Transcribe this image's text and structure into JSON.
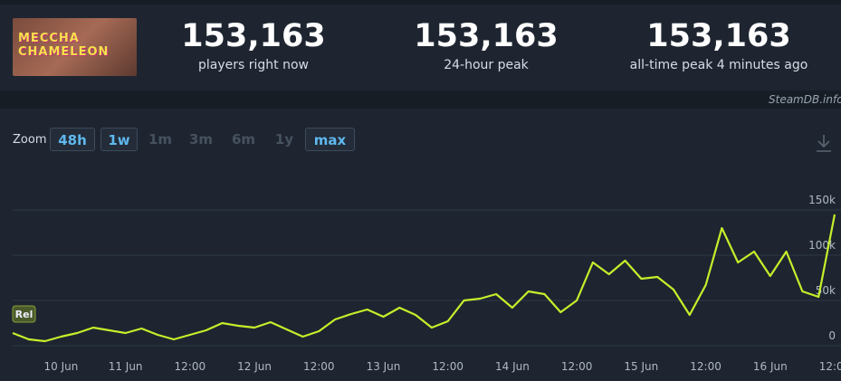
{
  "header": {
    "logo_text": "MECCHA CHAMELEON",
    "stats": [
      {
        "value": "153,163",
        "label": "players right now"
      },
      {
        "value": "153,163",
        "label": "24-hour peak"
      },
      {
        "value": "153,163",
        "label": "all-time peak 4 minutes ago"
      }
    ],
    "watermark": "SteamDB.info"
  },
  "zoom": {
    "label": "Zoom",
    "buttons": [
      "48h",
      "1w",
      "1m",
      "3m",
      "6m",
      "1y",
      "max"
    ]
  },
  "chart_data": {
    "type": "line",
    "annotation": "Rel",
    "categories": [
      null,
      null,
      null,
      "10 Jun",
      null,
      null,
      null,
      "11 Jun",
      null,
      null,
      null,
      "12:00",
      null,
      null,
      null,
      "12 Jun",
      null,
      null,
      null,
      "12:00",
      null,
      null,
      null,
      "13 Jun",
      null,
      null,
      null,
      "12:00",
      null,
      null,
      null,
      "14 Jun",
      null,
      null,
      null,
      "12:00",
      null,
      null,
      null,
      "15 Jun",
      null,
      null,
      null,
      "12:00",
      null,
      null,
      null,
      "16 Jun",
      null,
      null,
      null,
      "12:00"
    ],
    "series": [
      {
        "name": "Players",
        "color": "#c6ef2a",
        "values": [
          14000,
          7000,
          5000,
          10000,
          14000,
          20000,
          17000,
          14000,
          19000,
          12000,
          7000,
          12000,
          17000,
          25000,
          22000,
          20000,
          26000,
          18000,
          10000,
          16000,
          29000,
          35000,
          40000,
          32000,
          42000,
          34000,
          20000,
          27000,
          50000,
          52000,
          57000,
          42000,
          60000,
          57000,
          37000,
          50000,
          92000,
          79000,
          94000,
          74000,
          76000,
          62000,
          34000,
          67000,
          130000,
          92000,
          104000,
          77000,
          104000,
          60000,
          54000,
          145000
        ]
      }
    ],
    "ylim": [
      0,
      150000
    ],
    "yticks": [
      0,
      {
        "value": 50000,
        "label": "50k"
      },
      {
        "value": 100000,
        "label": "100k"
      },
      {
        "value": 150000,
        "label": "150k"
      }
    ],
    "grid": true
  }
}
